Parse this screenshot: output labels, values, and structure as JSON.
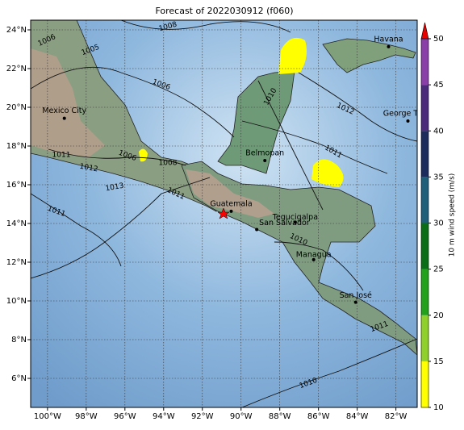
{
  "map": {
    "title": "Forecast of 2022030912 (f060)",
    "xlim": [
      -100.87,
      -80.9
    ],
    "ylim": [
      4.5,
      24.5
    ],
    "grid": true,
    "xticks": [
      {
        "value": -100,
        "label": "100°W"
      },
      {
        "value": -98,
        "label": "98°W"
      },
      {
        "value": -96,
        "label": "96°W"
      },
      {
        "value": -94,
        "label": "94°W"
      },
      {
        "value": -92,
        "label": "92°W"
      },
      {
        "value": -90,
        "label": "90°W"
      },
      {
        "value": -88,
        "label": "88°W"
      },
      {
        "value": -86,
        "label": "86°W"
      },
      {
        "value": -84,
        "label": "84°W"
      },
      {
        "value": -82,
        "label": "82°W"
      }
    ],
    "yticks": [
      {
        "value": 6,
        "label": "6°N"
      },
      {
        "value": 8,
        "label": "8°N"
      },
      {
        "value": 10,
        "label": "10°N"
      },
      {
        "value": 12,
        "label": "12°N"
      },
      {
        "value": 14,
        "label": "14°N"
      },
      {
        "value": 16,
        "label": "16°N"
      },
      {
        "value": 18,
        "label": "18°N"
      },
      {
        "value": 20,
        "label": "20°N"
      },
      {
        "value": 22,
        "label": "22°N"
      },
      {
        "value": 24,
        "label": "24°N"
      }
    ],
    "cities": [
      {
        "name": "Havana",
        "lon": -82.38,
        "lat": 23.13
      },
      {
        "name": "George Town",
        "lon": -81.38,
        "lat": 19.29
      },
      {
        "name": "Mexico City",
        "lon": -99.13,
        "lat": 19.43
      },
      {
        "name": "Belmopan",
        "lon": -88.77,
        "lat": 17.25
      },
      {
        "name": "Guatemala",
        "lon": -90.51,
        "lat": 14.63
      },
      {
        "name": "Tegucigalpa",
        "lon": -87.2,
        "lat": 14.07
      },
      {
        "name": "San Salvador",
        "lon": -89.19,
        "lat": 13.69
      },
      {
        "name": "Managua",
        "lon": -86.25,
        "lat": 12.13
      },
      {
        "name": "San José",
        "lon": -84.08,
        "lat": 9.93
      }
    ],
    "isobar_labels": [
      "1008",
      "1005",
      "1006",
      "1006",
      "1010",
      "1012",
      "1011",
      "1006",
      "1008",
      "1011",
      "1012",
      "1013",
      "1011",
      "1011",
      "1010",
      "1010",
      "1011"
    ],
    "colorbar": {
      "label": "10 m wind speed (m/s)",
      "lim": [
        10,
        50
      ],
      "ticks": [
        10,
        15,
        20,
        25,
        30,
        35,
        40,
        45,
        50
      ],
      "colors": [
        "#ffff00",
        "#8fd12a",
        "#22a11a",
        "#0a6e16",
        "#1e5f7a",
        "#1c2c5c",
        "#4b2a7c",
        "#8a3fa8"
      ],
      "over_color": "#e60000"
    }
  }
}
